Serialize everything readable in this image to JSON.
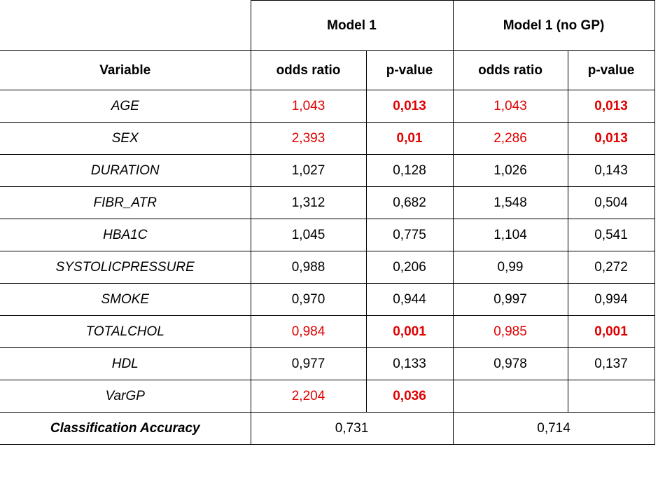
{
  "table": {
    "groups": [
      "Model 1",
      "Model 1 (no GP)"
    ],
    "columns": [
      "Variable",
      "odds ratio",
      "p-value",
      "odds ratio",
      "p-value"
    ],
    "rows": [
      [
        "AGE",
        "1,043",
        "0,013",
        "1,043",
        "0,013"
      ],
      [
        "SEX",
        "2,393",
        "0,01",
        "2,286",
        "0,013"
      ],
      [
        "DURATION",
        "1,027",
        "0,128",
        "1,026",
        "0,143"
      ],
      [
        "FIBR_ATR",
        "1,312",
        "0,682",
        "1,548",
        "0,504"
      ],
      [
        "HBA1C",
        "1,045",
        "0,775",
        "1,104",
        "0,541"
      ],
      [
        "SYSTOLICPRESSURE",
        "0,988",
        "0,206",
        "0,99",
        "0,272"
      ],
      [
        "SMOKE",
        "0,970",
        "0,944",
        "0,997",
        "0,994"
      ],
      [
        "TOTALCHOL",
        "0,984",
        "0,001",
        "0,985",
        "0,001"
      ],
      [
        "HDL",
        "0,977",
        "0,133",
        "0,978",
        "0,137"
      ],
      [
        "VarGP",
        "2,204",
        "0,036"
      ]
    ],
    "footer": {
      "label": "Classification Accuracy",
      "values": [
        "0,731",
        "0,714"
      ]
    }
  }
}
